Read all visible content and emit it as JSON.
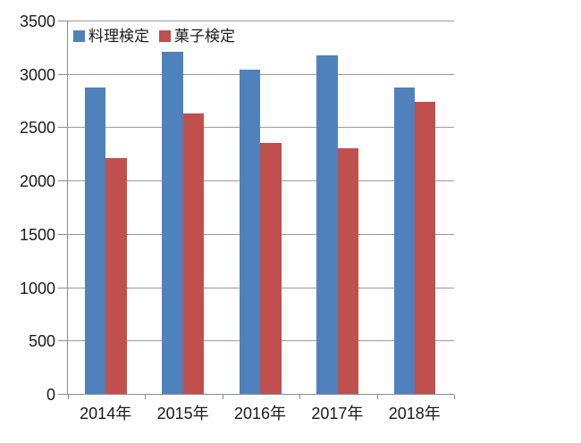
{
  "chart_data": {
    "type": "bar",
    "title": "",
    "xlabel": "",
    "ylabel": "",
    "categories": [
      "2014年",
      "2015年",
      "2016年",
      "2017年",
      "2018年"
    ],
    "series": [
      {
        "name": "料理検定",
        "color": "#4F81BD",
        "values": [
          2870,
          3210,
          3040,
          3170,
          2870
        ]
      },
      {
        "name": "菓子検定",
        "color": "#C0504D",
        "values": [
          2210,
          2630,
          2350,
          2300,
          2740
        ]
      }
    ],
    "ylim": [
      0,
      3500
    ],
    "y_tick_step": 500,
    "y_ticks": [
      0,
      500,
      1000,
      1500,
      2000,
      2500,
      3000,
      3500
    ],
    "grid": true,
    "legend_position": "top-left",
    "gridline_color": "#9a9a9a",
    "axis_color": "#8c8c8c",
    "text_color": "#1a1a1a",
    "background_color": "#ffffff"
  }
}
